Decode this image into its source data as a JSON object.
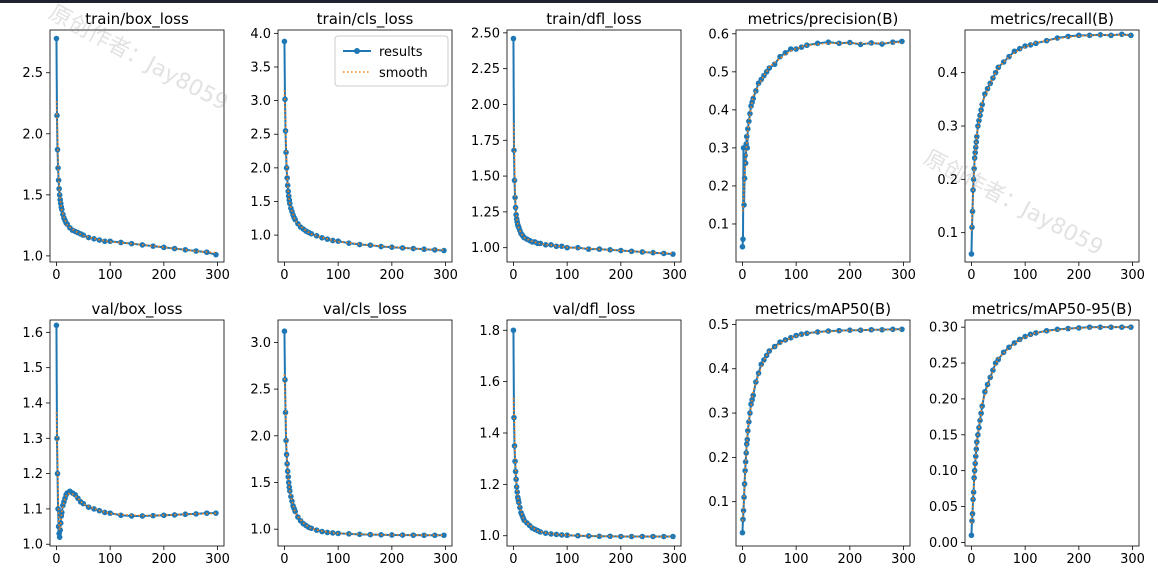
{
  "figure": {
    "background": "#ffffff",
    "results_color": "#1f77b4",
    "smooth_color": "#ff7f0e",
    "legend": {
      "results_label": "results",
      "smooth_label": "smooth",
      "placement": "top-right"
    }
  },
  "watermarks": [
    {
      "line1": "原创作者：Jay8059",
      "line2": "原创作者：Jay8059"
    }
  ],
  "chart_data": [
    {
      "type": "line",
      "title": "train/box_loss",
      "xlim": [
        -12,
        312
      ],
      "ylim": [
        0.95,
        2.85
      ],
      "xticks": [
        0,
        100,
        200,
        300
      ],
      "yticks": [
        1.0,
        1.5,
        2.0,
        2.5
      ],
      "ytick_labels": [
        "1.0",
        "1.5",
        "2.0",
        "2.5"
      ],
      "series": [
        {
          "name": "results",
          "x": [
            0,
            1,
            2,
            3,
            4,
            5,
            6,
            7,
            8,
            9,
            10,
            12,
            14,
            16,
            18,
            20,
            25,
            30,
            35,
            40,
            45,
            50,
            60,
            70,
            80,
            90,
            100,
            120,
            140,
            160,
            180,
            200,
            220,
            240,
            260,
            280,
            297
          ],
          "y": [
            2.78,
            2.15,
            1.87,
            1.72,
            1.62,
            1.55,
            1.5,
            1.46,
            1.43,
            1.4,
            1.38,
            1.34,
            1.31,
            1.29,
            1.27,
            1.26,
            1.23,
            1.21,
            1.2,
            1.19,
            1.18,
            1.17,
            1.15,
            1.14,
            1.13,
            1.12,
            1.12,
            1.11,
            1.1,
            1.09,
            1.08,
            1.07,
            1.06,
            1.05,
            1.04,
            1.03,
            1.01
          ]
        }
      ]
    },
    {
      "type": "line",
      "title": "train/cls_loss",
      "xlim": [
        -12,
        312
      ],
      "ylim": [
        0.6,
        4.05
      ],
      "xticks": [
        0,
        100,
        200,
        300
      ],
      "yticks": [
        1.0,
        1.5,
        2.0,
        2.5,
        3.0,
        3.5,
        4.0
      ],
      "ytick_labels": [
        "1.0",
        "1.5",
        "2.0",
        "2.5",
        "3.0",
        "3.5",
        "4.0"
      ],
      "legend": true,
      "series": [
        {
          "name": "results",
          "x": [
            0,
            1,
            2,
            3,
            4,
            5,
            6,
            7,
            8,
            9,
            10,
            12,
            14,
            16,
            18,
            20,
            25,
            30,
            35,
            40,
            45,
            50,
            60,
            70,
            80,
            90,
            100,
            120,
            140,
            160,
            180,
            200,
            220,
            240,
            260,
            280,
            297
          ],
          "y": [
            3.88,
            3.02,
            2.55,
            2.23,
            2.0,
            1.85,
            1.74,
            1.65,
            1.58,
            1.52,
            1.47,
            1.4,
            1.35,
            1.3,
            1.26,
            1.23,
            1.17,
            1.12,
            1.09,
            1.06,
            1.04,
            1.02,
            0.99,
            0.96,
            0.94,
            0.92,
            0.91,
            0.88,
            0.86,
            0.85,
            0.83,
            0.82,
            0.81,
            0.8,
            0.79,
            0.78,
            0.77
          ]
        }
      ]
    },
    {
      "type": "line",
      "title": "train/dfl_loss",
      "xlim": [
        -12,
        312
      ],
      "ylim": [
        0.9,
        2.52
      ],
      "xticks": [
        0,
        100,
        200,
        300
      ],
      "yticks": [
        1.0,
        1.25,
        1.5,
        1.75,
        2.0,
        2.25,
        2.5
      ],
      "ytick_labels": [
        "1.00",
        "1.25",
        "1.50",
        "1.75",
        "2.00",
        "2.25",
        "2.50"
      ],
      "series": [
        {
          "name": "results",
          "x": [
            0,
            1,
            2,
            3,
            4,
            5,
            6,
            7,
            8,
            9,
            10,
            12,
            14,
            16,
            18,
            20,
            25,
            30,
            35,
            40,
            45,
            50,
            60,
            70,
            80,
            90,
            100,
            120,
            140,
            160,
            180,
            200,
            220,
            240,
            260,
            280,
            297
          ],
          "y": [
            2.46,
            1.68,
            1.47,
            1.35,
            1.28,
            1.23,
            1.2,
            1.18,
            1.16,
            1.15,
            1.14,
            1.12,
            1.1,
            1.09,
            1.08,
            1.07,
            1.06,
            1.05,
            1.04,
            1.04,
            1.03,
            1.03,
            1.02,
            1.02,
            1.01,
            1.01,
            1.0,
            1.0,
            0.99,
            0.99,
            0.985,
            0.98,
            0.975,
            0.97,
            0.965,
            0.96,
            0.955
          ]
        }
      ]
    },
    {
      "type": "line",
      "title": "metrics/precision(B)",
      "xlim": [
        -12,
        312
      ],
      "ylim": [
        0.0,
        0.61
      ],
      "xticks": [
        0,
        100,
        200,
        300
      ],
      "yticks": [
        0.1,
        0.2,
        0.3,
        0.4,
        0.5,
        0.6
      ],
      "ytick_labels": [
        "0.1",
        "0.2",
        "0.3",
        "0.4",
        "0.5",
        "0.6"
      ],
      "series": [
        {
          "name": "results",
          "x": [
            0,
            1,
            2,
            3,
            4,
            5,
            6,
            7,
            8,
            9,
            10,
            12,
            14,
            16,
            18,
            20,
            25,
            30,
            35,
            40,
            45,
            50,
            60,
            70,
            80,
            90,
            100,
            110,
            120,
            140,
            160,
            180,
            200,
            220,
            240,
            260,
            280,
            297
          ],
          "y": [
            0.04,
            0.06,
            0.3,
            0.15,
            0.22,
            0.28,
            0.26,
            0.31,
            0.33,
            0.3,
            0.35,
            0.37,
            0.39,
            0.41,
            0.42,
            0.43,
            0.45,
            0.47,
            0.48,
            0.49,
            0.5,
            0.51,
            0.52,
            0.54,
            0.55,
            0.56,
            0.56,
            0.565,
            0.57,
            0.575,
            0.578,
            0.575,
            0.577,
            0.572,
            0.576,
            0.573,
            0.578,
            0.58
          ]
        }
      ]
    },
    {
      "type": "line",
      "title": "metrics/recall(B)",
      "xlim": [
        -12,
        312
      ],
      "ylim": [
        0.045,
        0.48
      ],
      "xticks": [
        0,
        100,
        200,
        300
      ],
      "yticks": [
        0.1,
        0.2,
        0.3,
        0.4
      ],
      "ytick_labels": [
        "0.1",
        "0.2",
        "0.3",
        "0.4"
      ],
      "series": [
        {
          "name": "results",
          "x": [
            0,
            1,
            2,
            3,
            4,
            5,
            6,
            7,
            8,
            9,
            10,
            12,
            14,
            16,
            18,
            20,
            25,
            30,
            35,
            40,
            45,
            50,
            60,
            70,
            80,
            90,
            100,
            110,
            120,
            140,
            160,
            180,
            200,
            220,
            240,
            260,
            280,
            297
          ],
          "y": [
            0.06,
            0.11,
            0.14,
            0.18,
            0.2,
            0.22,
            0.24,
            0.25,
            0.26,
            0.27,
            0.28,
            0.3,
            0.31,
            0.32,
            0.33,
            0.34,
            0.36,
            0.37,
            0.38,
            0.39,
            0.4,
            0.41,
            0.42,
            0.43,
            0.44,
            0.445,
            0.45,
            0.452,
            0.455,
            0.46,
            0.465,
            0.468,
            0.47,
            0.47,
            0.471,
            0.47,
            0.472,
            0.47
          ]
        }
      ]
    },
    {
      "type": "line",
      "title": "val/box_loss",
      "xlim": [
        -12,
        312
      ],
      "ylim": [
        0.995,
        1.635
      ],
      "xticks": [
        0,
        100,
        200,
        300
      ],
      "yticks": [
        1.0,
        1.1,
        1.2,
        1.3,
        1.4,
        1.5,
        1.6
      ],
      "ytick_labels": [
        "1.0",
        "1.1",
        "1.2",
        "1.3",
        "1.4",
        "1.5",
        "1.6"
      ],
      "series": [
        {
          "name": "results",
          "x": [
            0,
            1,
            2,
            3,
            4,
            5,
            6,
            7,
            8,
            9,
            10,
            12,
            14,
            16,
            18,
            20,
            25,
            30,
            35,
            40,
            45,
            50,
            60,
            70,
            80,
            90,
            100,
            120,
            140,
            160,
            180,
            200,
            220,
            240,
            260,
            280,
            297
          ],
          "y": [
            1.62,
            1.3,
            1.2,
            1.1,
            1.05,
            1.03,
            1.02,
            1.04,
            1.06,
            1.08,
            1.09,
            1.11,
            1.12,
            1.13,
            1.14,
            1.145,
            1.15,
            1.145,
            1.14,
            1.13,
            1.12,
            1.115,
            1.105,
            1.1,
            1.095,
            1.09,
            1.088,
            1.082,
            1.08,
            1.08,
            1.081,
            1.082,
            1.083,
            1.085,
            1.086,
            1.088,
            1.088
          ]
        }
      ]
    },
    {
      "type": "line",
      "title": "val/cls_loss",
      "xlim": [
        -12,
        312
      ],
      "ylim": [
        0.82,
        3.24
      ],
      "xticks": [
        0,
        100,
        200,
        300
      ],
      "yticks": [
        1.0,
        1.5,
        2.0,
        2.5,
        3.0
      ],
      "ytick_labels": [
        "1.0",
        "1.5",
        "2.0",
        "2.5",
        "3.0"
      ],
      "series": [
        {
          "name": "results",
          "x": [
            0,
            1,
            2,
            3,
            4,
            5,
            6,
            7,
            8,
            9,
            10,
            12,
            14,
            16,
            18,
            20,
            25,
            30,
            35,
            40,
            45,
            50,
            60,
            70,
            80,
            90,
            100,
            120,
            140,
            160,
            180,
            200,
            220,
            240,
            260,
            280,
            297
          ],
          "y": [
            3.12,
            2.6,
            2.25,
            1.95,
            1.8,
            1.7,
            1.62,
            1.56,
            1.5,
            1.45,
            1.41,
            1.35,
            1.3,
            1.25,
            1.22,
            1.19,
            1.13,
            1.09,
            1.06,
            1.04,
            1.02,
            1.01,
            0.99,
            0.975,
            0.965,
            0.96,
            0.955,
            0.95,
            0.945,
            0.942,
            0.94,
            0.938,
            0.937,
            0.936,
            0.935,
            0.935,
            0.935
          ]
        }
      ]
    },
    {
      "type": "line",
      "title": "val/dfl_loss",
      "xlim": [
        -12,
        312
      ],
      "ylim": [
        0.96,
        1.84
      ],
      "xticks": [
        0,
        100,
        200,
        300
      ],
      "yticks": [
        1.0,
        1.2,
        1.4,
        1.6,
        1.8
      ],
      "ytick_labels": [
        "1.0",
        "1.2",
        "1.4",
        "1.6",
        "1.8"
      ],
      "series": [
        {
          "name": "results",
          "x": [
            0,
            1,
            2,
            3,
            4,
            5,
            6,
            7,
            8,
            9,
            10,
            12,
            14,
            16,
            18,
            20,
            25,
            30,
            35,
            40,
            45,
            50,
            60,
            70,
            80,
            90,
            100,
            120,
            140,
            160,
            180,
            200,
            220,
            240,
            260,
            280,
            297
          ],
          "y": [
            1.8,
            1.46,
            1.35,
            1.29,
            1.25,
            1.22,
            1.19,
            1.17,
            1.15,
            1.14,
            1.13,
            1.11,
            1.09,
            1.08,
            1.07,
            1.06,
            1.05,
            1.04,
            1.03,
            1.025,
            1.02,
            1.015,
            1.01,
            1.007,
            1.005,
            1.003,
            1.002,
            1.0,
            0.999,
            0.998,
            0.998,
            0.997,
            0.997,
            0.997,
            0.997,
            0.997,
            0.997
          ]
        }
      ]
    },
    {
      "type": "line",
      "title": "metrics/mAP50(B)",
      "xlim": [
        -12,
        312
      ],
      "ylim": [
        0.0,
        0.51
      ],
      "xticks": [
        0,
        100,
        200,
        300
      ],
      "yticks": [
        0.1,
        0.2,
        0.3,
        0.4,
        0.5
      ],
      "ytick_labels": [
        "0.1",
        "0.2",
        "0.3",
        "0.4",
        "0.5"
      ],
      "series": [
        {
          "name": "results",
          "x": [
            0,
            1,
            2,
            3,
            4,
            5,
            6,
            7,
            8,
            9,
            10,
            12,
            14,
            16,
            18,
            20,
            25,
            30,
            35,
            40,
            45,
            50,
            60,
            70,
            80,
            90,
            100,
            110,
            120,
            140,
            160,
            180,
            200,
            220,
            240,
            260,
            280,
            297
          ],
          "y": [
            0.03,
            0.06,
            0.08,
            0.11,
            0.14,
            0.17,
            0.19,
            0.21,
            0.23,
            0.24,
            0.26,
            0.28,
            0.3,
            0.32,
            0.33,
            0.34,
            0.37,
            0.39,
            0.41,
            0.42,
            0.43,
            0.44,
            0.45,
            0.46,
            0.465,
            0.47,
            0.475,
            0.478,
            0.48,
            0.483,
            0.485,
            0.486,
            0.487,
            0.487,
            0.488,
            0.488,
            0.489,
            0.489
          ]
        }
      ]
    },
    {
      "type": "line",
      "title": "metrics/mAP50-95(B)",
      "xlim": [
        -12,
        312
      ],
      "ylim": [
        -0.005,
        0.31
      ],
      "xticks": [
        0,
        100,
        200,
        300
      ],
      "yticks": [
        0.0,
        0.05,
        0.1,
        0.15,
        0.2,
        0.25,
        0.3
      ],
      "ytick_labels": [
        "0.00",
        "0.05",
        "0.10",
        "0.15",
        "0.20",
        "0.25",
        "0.30"
      ],
      "series": [
        {
          "name": "results",
          "x": [
            0,
            1,
            2,
            3,
            4,
            5,
            6,
            7,
            8,
            9,
            10,
            12,
            14,
            16,
            18,
            20,
            25,
            30,
            35,
            40,
            45,
            50,
            60,
            70,
            80,
            90,
            100,
            110,
            120,
            140,
            160,
            180,
            200,
            220,
            240,
            260,
            280,
            297
          ],
          "y": [
            0.01,
            0.03,
            0.04,
            0.06,
            0.07,
            0.09,
            0.1,
            0.11,
            0.12,
            0.13,
            0.14,
            0.15,
            0.16,
            0.17,
            0.18,
            0.19,
            0.21,
            0.22,
            0.23,
            0.24,
            0.25,
            0.255,
            0.265,
            0.272,
            0.278,
            0.283,
            0.287,
            0.29,
            0.292,
            0.295,
            0.297,
            0.298,
            0.299,
            0.3,
            0.3,
            0.3,
            0.3,
            0.3
          ]
        }
      ]
    }
  ]
}
